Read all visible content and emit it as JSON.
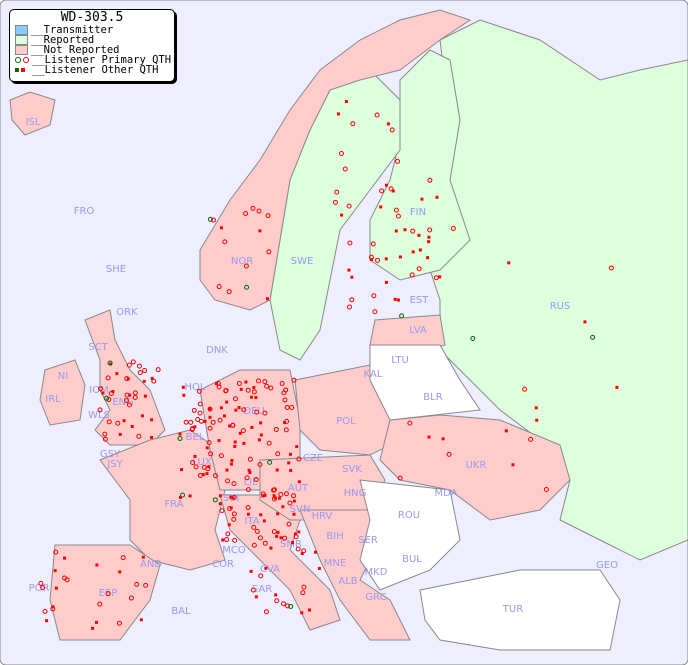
{
  "title": "WD-303.5",
  "legend": [
    {
      "label": "__Transmitter",
      "color": "#88ccff"
    },
    {
      "label": "__Reported",
      "color": "#ddffdd"
    },
    {
      "label": "__Not Reported",
      "color": "#ffcccc"
    },
    {
      "label": "__Listener Primary QTH",
      "marker": "circle",
      "colors": [
        "#006600",
        "#ff0000"
      ]
    },
    {
      "label": "__Listener Other QTH",
      "marker": "square",
      "colors": [
        "#006600",
        "#ff0000"
      ]
    }
  ],
  "colors": {
    "sea": "#eeeeff",
    "reported": "#ddffdd",
    "not_reported": "#ffcccc",
    "no_data": "#ffffff",
    "marker": "#ff0000",
    "marker_alt": "#006600",
    "label": "#9999ee"
  },
  "countries": [
    "ISL",
    "FRO",
    "SHE",
    "ORK",
    "NOR",
    "SWE",
    "FIN",
    "RUS",
    "EST",
    "LVA",
    "LTU",
    "KAL",
    "BLR",
    "DNK",
    "SCT",
    "NI",
    "IOM",
    "IRL",
    "WLS",
    "ENG",
    "HOL",
    "BEL",
    "LUX",
    "DEU",
    "POL",
    "CZE",
    "SVK",
    "UKR",
    "MDA",
    "GSY",
    "JSY",
    "FRA",
    "SUI",
    "LIE",
    "AUT",
    "HNG",
    "ROU",
    "SVN",
    "HRV",
    "ITA",
    "SMR",
    "BIH",
    "SER",
    "MCO",
    "COR",
    "CVA",
    "MNE",
    "BUL",
    "AND",
    "ESP",
    "SAR",
    "ALB",
    "MKD",
    "GEO",
    "POR",
    "BAL",
    "GRC",
    "TUR"
  ]
}
